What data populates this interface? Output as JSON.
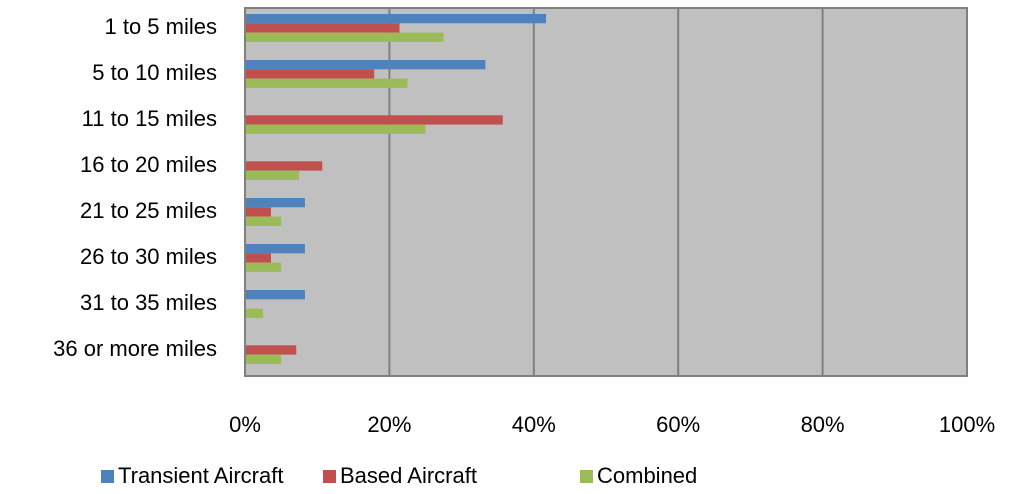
{
  "chart_data": {
    "type": "bar",
    "orientation": "horizontal",
    "categories": [
      "1 to 5 miles",
      "5 to 10 miles",
      "11 to 15 miles",
      "16 to 20 miles",
      "21 to 25 miles",
      "26 to 30 miles",
      "31 to 35 miles",
      "36 or more miles"
    ],
    "series": [
      {
        "name": "Transient Aircraft",
        "color": "#4f81bd",
        "values": [
          41.7,
          33.3,
          0,
          0,
          8.3,
          8.3,
          8.3,
          0
        ]
      },
      {
        "name": "Based Aircraft",
        "color": "#c0504d",
        "values": [
          21.4,
          17.9,
          35.7,
          10.7,
          3.6,
          3.6,
          0,
          7.1
        ]
      },
      {
        "name": "Combined",
        "color": "#9bbb59",
        "values": [
          27.5,
          22.5,
          25.0,
          7.5,
          5.0,
          5.0,
          2.5,
          5.0
        ]
      }
    ],
    "xlim": [
      0,
      100
    ],
    "xticks": [
      "0%",
      "20%",
      "40%",
      "60%",
      "80%",
      "100%"
    ],
    "title": "",
    "xlabel": "",
    "ylabel": "",
    "grid": "vertical",
    "legend_position": "bottom",
    "plot_background": "#c0c0c0",
    "gridline_color": "#808080"
  }
}
